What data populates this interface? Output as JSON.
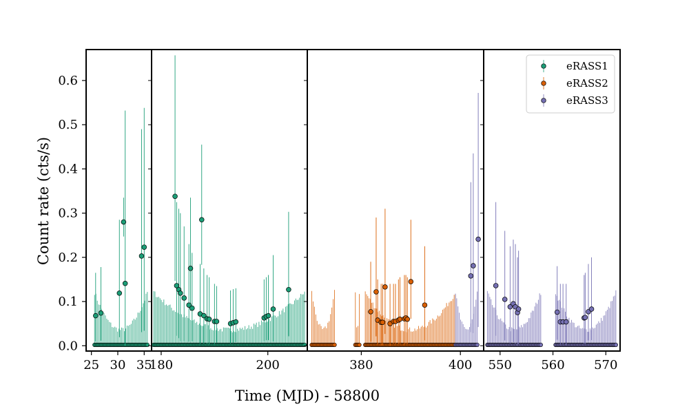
{
  "chart_data": {
    "type": "scatter",
    "xlabel": "Time (MJD) - 58800",
    "ylabel": "Count rate (cts/s)",
    "ylim": [
      -0.012,
      0.67
    ],
    "yticks": [
      0.0,
      0.1,
      0.2,
      0.3,
      0.4,
      0.5,
      0.6
    ],
    "ytick_labels": [
      "0.0",
      "0.1",
      "0.2",
      "0.3",
      "0.4",
      "0.5",
      "0.6"
    ],
    "legend_position": "top-right",
    "colors": {
      "eRASS1": "#1b9e77",
      "eRASS2": "#d95f02",
      "eRASS3": "#7570b3"
    },
    "legend": [
      {
        "name": "eRASS1",
        "color": "#1b9e77"
      },
      {
        "name": "eRASS2",
        "color": "#d95f02"
      },
      {
        "name": "eRASS3",
        "color": "#7570b3"
      }
    ],
    "panels": [
      {
        "xlim": [
          24,
          36.4
        ],
        "xticks": [
          25,
          30,
          35
        ],
        "xtick_labels": [
          "25",
          "30",
          "35"
        ],
        "segments": [
          {
            "series": "eRASS1",
            "start": 25.6,
            "end": 35.6,
            "n": 40,
            "detections": [
              {
                "x": 25.8,
                "y": 0.068,
                "up": 0.165
              },
              {
                "x": 26.8,
                "y": 0.074,
                "up": 0.178
              },
              {
                "x": 30.3,
                "y": 0.119,
                "up": 0.285
              },
              {
                "x": 31.1,
                "y": 0.28,
                "up": 0.335
              },
              {
                "x": 31.4,
                "y": 0.141,
                "up": 0.532
              },
              {
                "x": 34.5,
                "y": 0.203,
                "up": 0.49
              },
              {
                "x": 35.0,
                "y": 0.223,
                "up": 0.538
              }
            ]
          }
        ]
      },
      {
        "xlim": [
          178.2,
          207.4
        ],
        "xticks": [
          180,
          200
        ],
        "xtick_labels": [
          "180",
          "200"
        ],
        "segments": [
          {
            "series": "eRASS1",
            "start": 178.6,
            "end": 206.9,
            "n": 120,
            "detections": [
              {
                "x": 182.6,
                "y": 0.338,
                "up": 0.657
              },
              {
                "x": 182.9,
                "y": 0.136,
                "up": 0.325
              },
              {
                "x": 183.3,
                "y": 0.127,
                "up": 0.31
              },
              {
                "x": 183.6,
                "y": 0.119,
                "up": 0.3
              },
              {
                "x": 184.3,
                "y": 0.108,
                "up": 0.27
              },
              {
                "x": 185.2,
                "y": 0.092,
                "up": 0.23
              },
              {
                "x": 185.5,
                "y": 0.175,
                "up": 0.335
              },
              {
                "x": 185.8,
                "y": 0.085,
                "up": 0.21
              },
              {
                "x": 187.3,
                "y": 0.072,
                "up": 0.185
              },
              {
                "x": 187.6,
                "y": 0.285,
                "up": 0.455
              },
              {
                "x": 188.0,
                "y": 0.068,
                "up": 0.175
              },
              {
                "x": 188.6,
                "y": 0.061,
                "up": 0.16
              },
              {
                "x": 189.0,
                "y": 0.06,
                "up": 0.155
              },
              {
                "x": 190.0,
                "y": 0.055,
                "up": 0.14
              },
              {
                "x": 190.4,
                "y": 0.055,
                "up": 0.135
              },
              {
                "x": 193.0,
                "y": 0.05,
                "up": 0.125
              },
              {
                "x": 193.5,
                "y": 0.052,
                "up": 0.128
              },
              {
                "x": 194.0,
                "y": 0.054,
                "up": 0.13
              },
              {
                "x": 199.3,
                "y": 0.063,
                "up": 0.15
              },
              {
                "x": 199.7,
                "y": 0.066,
                "up": 0.155
              },
              {
                "x": 200.1,
                "y": 0.068,
                "up": 0.16
              },
              {
                "x": 201.0,
                "y": 0.083,
                "up": 0.205
              },
              {
                "x": 203.9,
                "y": 0.127,
                "up": 0.303
              }
            ]
          }
        ]
      },
      {
        "xlim": [
          369.1,
          404.7
        ],
        "xticks": [
          380,
          400
        ],
        "xtick_labels": [
          "380",
          "400"
        ],
        "segments": [
          {
            "series": "eRASS2",
            "start": 370.0,
            "end": 374.6,
            "n": 18,
            "detections": []
          },
          {
            "series": "eRASS2",
            "start": 378.8,
            "end": 379.6,
            "n": 4,
            "detections": []
          },
          {
            "series": "eRASS2",
            "start": 380.8,
            "end": 399.0,
            "n": 72,
            "detections": [
              {
                "x": 381.9,
                "y": 0.077,
                "up": 0.19
              },
              {
                "x": 383.0,
                "y": 0.122,
                "up": 0.29
              },
              {
                "x": 383.3,
                "y": 0.058,
                "up": 0.15
              },
              {
                "x": 384.0,
                "y": 0.053,
                "up": 0.14
              },
              {
                "x": 384.3,
                "y": 0.053,
                "up": 0.14
              },
              {
                "x": 384.8,
                "y": 0.133,
                "up": 0.31
              },
              {
                "x": 385.8,
                "y": 0.05,
                "up": 0.14
              },
              {
                "x": 386.5,
                "y": 0.055,
                "up": 0.14
              },
              {
                "x": 386.9,
                "y": 0.055,
                "up": 0.14
              },
              {
                "x": 387.5,
                "y": 0.058,
                "up": 0.15
              },
              {
                "x": 387.8,
                "y": 0.06,
                "up": 0.155
              },
              {
                "x": 388.7,
                "y": 0.061,
                "up": 0.16
              },
              {
                "x": 389.0,
                "y": 0.063,
                "up": 0.16
              },
              {
                "x": 389.3,
                "y": 0.06,
                "up": 0.155
              },
              {
                "x": 390.0,
                "y": 0.145,
                "up": 0.285
              },
              {
                "x": 392.8,
                "y": 0.092,
                "up": 0.225
              }
            ]
          },
          {
            "series": "eRASS3",
            "start": 399.0,
            "end": 403.4,
            "n": 18,
            "detections": [
              {
                "x": 402.1,
                "y": 0.158,
                "up": 0.37
              },
              {
                "x": 402.6,
                "y": 0.181,
                "up": 0.435
              },
              {
                "x": 403.6,
                "y": 0.241,
                "up": 0.572
              }
            ]
          }
        ]
      },
      {
        "xlim": [
          546.9,
          572.7
        ],
        "xticks": [
          550,
          560,
          570
        ],
        "xtick_labels": [
          "550",
          "560",
          "570"
        ],
        "segments": [
          {
            "series": "eRASS3",
            "start": 547.6,
            "end": 557.7,
            "n": 45,
            "detections": [
              {
                "x": 549.2,
                "y": 0.136,
                "up": 0.325
              },
              {
                "x": 550.9,
                "y": 0.105,
                "up": 0.26
              },
              {
                "x": 551.9,
                "y": 0.088,
                "up": 0.225
              },
              {
                "x": 552.5,
                "y": 0.095,
                "up": 0.24
              },
              {
                "x": 552.9,
                "y": 0.088,
                "up": 0.23
              },
              {
                "x": 553.3,
                "y": 0.075,
                "up": 0.2
              },
              {
                "x": 553.5,
                "y": 0.083,
                "up": 0.215
              }
            ]
          },
          {
            "series": "eRASS3",
            "start": 560.5,
            "end": 571.9,
            "n": 50,
            "detections": [
              {
                "x": 560.8,
                "y": 0.076,
                "up": 0.18
              },
              {
                "x": 561.4,
                "y": 0.054,
                "up": 0.14
              },
              {
                "x": 561.9,
                "y": 0.054,
                "up": 0.14
              },
              {
                "x": 562.5,
                "y": 0.054,
                "up": 0.14
              },
              {
                "x": 565.9,
                "y": 0.063,
                "up": 0.16
              },
              {
                "x": 566.1,
                "y": 0.064,
                "up": 0.165
              },
              {
                "x": 566.7,
                "y": 0.077,
                "up": 0.185
              },
              {
                "x": 567.3,
                "y": 0.083,
                "up": 0.2
              }
            ]
          }
        ]
      }
    ]
  }
}
